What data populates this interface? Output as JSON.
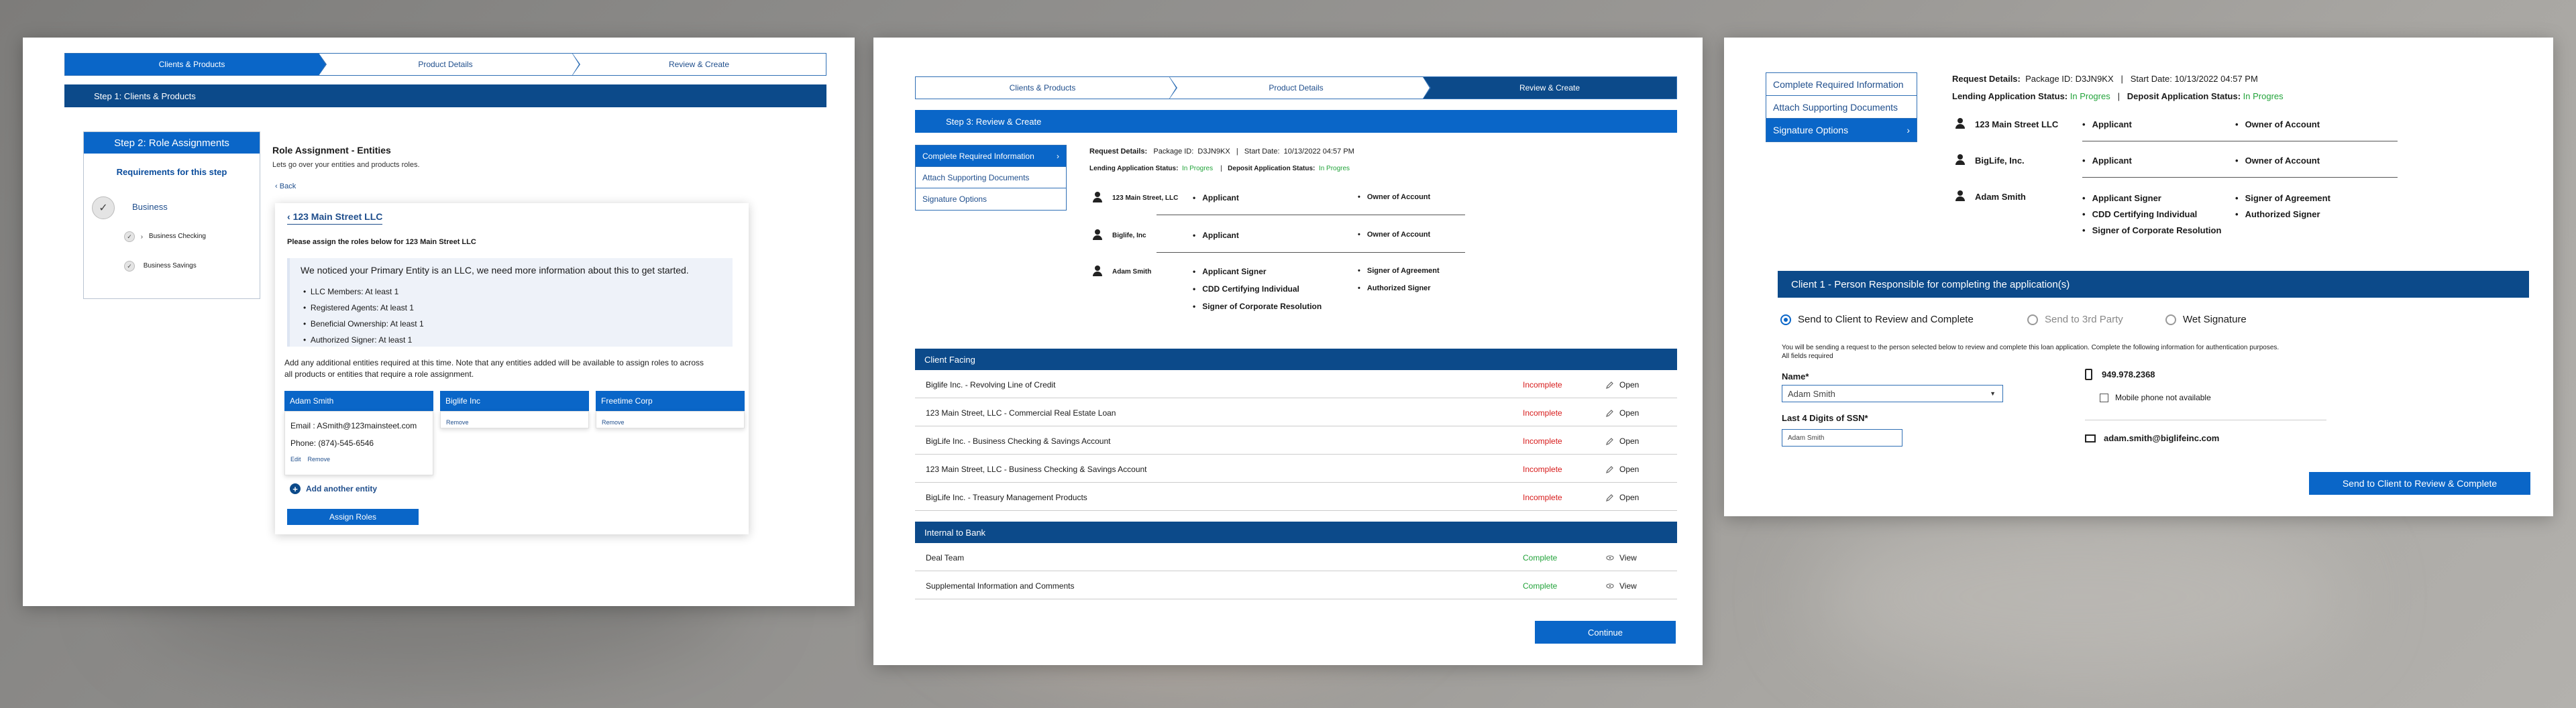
{
  "stepper": [
    "Clients & Products",
    "Product Details",
    "Review & Create"
  ],
  "panel1": {
    "bar": "Step 1: Clients & Products",
    "left": {
      "header": "Step 2: Role Assignments",
      "sub": "Requirements for this step",
      "business": "Business",
      "items": [
        "Business Checking",
        "Business Savings"
      ]
    },
    "title": "Role Assignment - Entities",
    "subtitle": "Lets go over your entities and products roles.",
    "back": "Back",
    "card": {
      "entity_link": "123 Main Street LLC",
      "assign_text": "Please assign the roles below for 123 Main Street LLC",
      "notice_title": "We noticed your Primary Entity is an LLC, we need more information about this to get started.",
      "notice_items": [
        "LLC Members: At least 1",
        "Registered Agents: At least 1",
        "Beneficial Ownership: At least 1",
        "Authorized Signer: At least 1"
      ],
      "info_line1": "Add any additional entities required at this time.  Note that any entities added will be available to assign roles to across",
      "info_line2": "all products or entities that require a role assignment.",
      "entities": [
        {
          "name": "Adam Smith",
          "email": "Email : ASmith@123mainsteet.com",
          "phone": "Phone: (874)-545-6546",
          "edit": "Edit",
          "remove": "Remove"
        },
        {
          "name": "Biglife Inc",
          "remove": "Remove"
        },
        {
          "name": "Freetime Corp",
          "remove": "Remove"
        }
      ],
      "add_entity": "Add another entity",
      "assign_btn": "Assign Roles"
    }
  },
  "panel2": {
    "bar": "Step 3: Review & Create",
    "nav": [
      "Complete Required Information",
      "Attach Supporting Documents",
      "Signature Options"
    ],
    "req_label": "Request Details:",
    "pkg_label": "Package ID:",
    "pkg_id": "D3JN9KX",
    "start_label": "Start Date:",
    "start_date": "10/13/2022 04:57 PM",
    "lending_label": "Lending Application Status:",
    "lending_status": "In Progres",
    "deposit_label": "Deposit Application Status:",
    "deposit_status": "In Progres",
    "parties": [
      {
        "name": "123 Main Street, LLC",
        "roles": [
          "Applicant",
          "Owner of Account"
        ]
      },
      {
        "name": "Biglife, Inc",
        "roles": [
          "Applicant",
          "Owner of Account"
        ]
      },
      {
        "name": "Adam Smith",
        "roles": [
          "Applicant Signer",
          "Signer of Agreement",
          "CDD Certifying Individual",
          "Authorized Signer",
          "Signer of Corporate Resolution"
        ]
      }
    ],
    "client_hdr": "Client Facing",
    "client_rows": [
      {
        "name": "Biglife Inc. - Revolving Line of Credit",
        "status": "Incomplete",
        "action": "Open"
      },
      {
        "name": "123 Main Street, LLC - Commercial Real Estate Loan",
        "status": "Incomplete",
        "action": "Open"
      },
      {
        "name": "BigLife Inc. - Business Checking & Savings Account",
        "status": "Incomplete",
        "action": "Open"
      },
      {
        "name": "123 Main Street, LLC - Business Checking & Savings Account",
        "status": "Incomplete",
        "action": "Open"
      },
      {
        "name": "BigLife Inc. - Treasury Management Products",
        "status": "Incomplete",
        "action": "Open"
      }
    ],
    "internal_hdr": "Internal to Bank",
    "internal_rows": [
      {
        "name": "Deal Team",
        "status": "Complete",
        "action": "View"
      },
      {
        "name": "Supplemental Information and Comments",
        "status": "Complete",
        "action": "View"
      }
    ],
    "continue": "Continue"
  },
  "panel3": {
    "nav": [
      "Complete Required Information",
      "Attach Supporting Documents",
      "Signature Options"
    ],
    "req_label": "Request Details:",
    "pkg_label": "Package ID:",
    "pkg_id": "D3JN9KX",
    "start_label": "Start Date:",
    "start_date": "10/13/2022 04:57 PM",
    "lending_label": "Lending Application Status:",
    "lending_status": "In Progres",
    "deposit_label": "Deposit Application Status:",
    "deposit_status": "In Progres",
    "parties": [
      {
        "name": "123 Main Street LLC",
        "roles": [
          "Applicant",
          "Owner of Account"
        ]
      },
      {
        "name": "BigLife, Inc.",
        "roles": [
          "Applicant",
          "Owner of Account"
        ]
      },
      {
        "name": "Adam Smith",
        "roles": [
          "Applicant Signer",
          "Signer of Agreement",
          "CDD Certifying Individual",
          "Authorized Signer",
          "Signer of Corporate Resolution"
        ]
      }
    ],
    "client_bar": "Client 1 - Person Responsible for completing the application(s)",
    "radios": [
      "Send to Client to Review and Complete",
      "Send to 3rd Party",
      "Wet Signature"
    ],
    "info1": "You will be sending a request to the person selected below to review and complete this loan application.  Complete the following information for authentication purposes.",
    "info2": "All fields required",
    "name_label": "Name*",
    "name_value": "Adam Smith",
    "ssn_label": "Last 4 Digits of SSN*",
    "ssn_value": "Adam Smith",
    "phone": "949.978.2368",
    "mobile_na": "Mobile phone not available",
    "email": "adam.smith@biglifeinc.com",
    "send_btn": "Send to Client to Review & Complete"
  }
}
